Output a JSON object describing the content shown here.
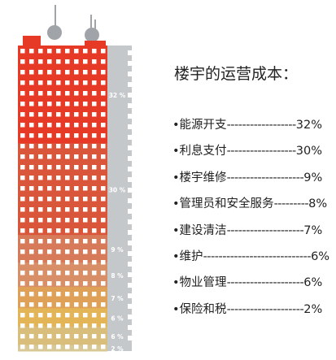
{
  "title": "楼宇的运营成本：",
  "chart_data": {
    "type": "bar",
    "stacked": true,
    "orientation": "vertical",
    "title": "楼宇的运营成本：",
    "unit": "%",
    "categories": [
      "能源开支",
      "利息支付",
      "楼宇维修",
      "管理员和安全服务",
      "建设清洁",
      "维护",
      "物业管理",
      "保险和税"
    ],
    "values": [
      32,
      30,
      9,
      8,
      7,
      6,
      6,
      2
    ],
    "value_labels": [
      "32 %",
      "30 %",
      "9 %",
      "8 %",
      "7 %",
      "6 %",
      "6 %",
      "2 %"
    ],
    "legend_entries": [
      {
        "label": "•能源开支",
        "dashes": "------------------",
        "value": "32%"
      },
      {
        "label": "•利息支付",
        "dashes": "------------------",
        "value": "30%"
      },
      {
        "label": "•楼宇维修",
        "dashes": "--------------------",
        "value": "9%"
      },
      {
        "label": "•管理员和安全服务",
        "dashes": "---------",
        "value": "8%"
      },
      {
        "label": "•建设清洁",
        "dashes": "--------------------",
        "value": "7%"
      },
      {
        "label": "•维护",
        "dashes": "----------------------------",
        "value": "6%"
      },
      {
        "label": "•物业管理",
        "dashes": "--------------------",
        "value": "6%"
      },
      {
        "label": "•保险和税",
        "dashes": "--------------------",
        "value": "2%"
      }
    ],
    "colors": {
      "top": "#e63a26",
      "bottom": "#dcc88a",
      "gradient": [
        "#e63a26",
        "#d9563a",
        "#d67a5a",
        "#d88f67",
        "#dfa158",
        "#e3b556",
        "#d9bd7a",
        "#d8c895"
      ],
      "side": "#c4c8cb",
      "windows": "#ffffff",
      "antenna": "#a0a4a8"
    },
    "legend_position": "right"
  }
}
